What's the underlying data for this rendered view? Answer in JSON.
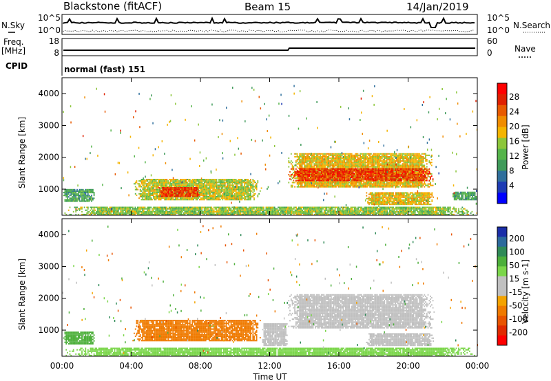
{
  "header": {
    "station": "Blackstone (fitACF)",
    "beam": "Beam 15",
    "date": "14/Jan/2019"
  },
  "top_panels": {
    "nsky_label": "N.Sky",
    "nsearch_label": "N.Search",
    "noise_ticks": [
      "10^5",
      "10^0"
    ],
    "freq_label": "Freq.",
    "freq_unit": "[MHz]",
    "freq_ticks": [
      "18",
      "8"
    ],
    "nave_label": "Nave",
    "nave_ticks": [
      "60",
      "0"
    ],
    "cpid_label": "CPID",
    "cpid_value": "normal (fast) 151"
  },
  "axes": {
    "ylabel": "Slant Range [km]",
    "yticks": [
      "4000",
      "3000",
      "2000",
      "1000"
    ],
    "xticks": [
      "00:00",
      "04:00",
      "08:00",
      "12:00",
      "16:00",
      "20:00",
      "00:00"
    ],
    "xlabel": "Time UT"
  },
  "colors": {
    "power": [
      "#0000ff",
      "#1e3cb4",
      "#2f6f9c",
      "#3f9a5a",
      "#55b44a",
      "#8cc63a",
      "#f4b400",
      "#f08c00",
      "#e85a00",
      "#e02000",
      "#ff0000"
    ],
    "velocity_pos": [
      "#1b2ea8",
      "#2c6a9c",
      "#2f8a57",
      "#4caf3a",
      "#7bd64a"
    ],
    "velocity_neg": [
      "#f4a300",
      "#ef7a00",
      "#e85400",
      "#e02a00",
      "#ff0000"
    ],
    "ground": "#c0c0c0"
  },
  "chart_data": [
    {
      "type": "heatmap",
      "title": "Power",
      "colorbar_label": "Power [dB]",
      "colorbar_ticks": [
        "28",
        "24",
        "20",
        "16",
        "12",
        "8",
        "4"
      ],
      "colorbar_range": [
        0,
        30
      ],
      "x_range_hours": [
        0,
        24
      ],
      "y_range_km": [
        180,
        4500
      ],
      "features": [
        {
          "t_start": 0.0,
          "t_end": 1.9,
          "r_start": 600,
          "r_end": 1000,
          "value": 10
        },
        {
          "t_start": 4.0,
          "t_end": 11.5,
          "r_start": 650,
          "r_end": 1300,
          "value": 16
        },
        {
          "t_start": 5.5,
          "t_end": 8.0,
          "r_start": 750,
          "r_end": 1050,
          "value": 26
        },
        {
          "t_start": 13.0,
          "t_end": 21.5,
          "r_start": 1050,
          "r_end": 2100,
          "value": 18
        },
        {
          "t_start": 13.0,
          "t_end": 21.5,
          "r_start": 1250,
          "r_end": 1650,
          "value": 26
        },
        {
          "t_start": 17.5,
          "t_end": 21.5,
          "r_start": 500,
          "r_end": 900,
          "value": 18
        },
        {
          "t_start": 22.5,
          "t_end": 24.0,
          "r_start": 650,
          "r_end": 900,
          "value": 10
        },
        {
          "t_start": 0.0,
          "t_end": 24.0,
          "r_start": 180,
          "r_end": 450,
          "value": 14
        }
      ]
    },
    {
      "type": "heatmap",
      "title": "Velocity",
      "colorbar_label": "Velocity [m s-1]",
      "colorbar_ticks": [
        "200",
        "100",
        "50",
        "15",
        "-15",
        "-50",
        "-100",
        "-200"
      ],
      "colorbar_range": [
        -250,
        250
      ],
      "x_range_hours": [
        0,
        24
      ],
      "y_range_km": [
        180,
        4500
      ],
      "features": [
        {
          "t_start": 0.0,
          "t_end": 1.9,
          "r_start": 550,
          "r_end": 950,
          "value": 60
        },
        {
          "t_start": 4.0,
          "t_end": 11.5,
          "r_start": 650,
          "r_end": 1300,
          "value": -70
        },
        {
          "t_start": 11.5,
          "t_end": 13.0,
          "r_start": 500,
          "r_end": 1200,
          "value": 0
        },
        {
          "t_start": 13.0,
          "t_end": 21.5,
          "r_start": 1050,
          "r_end": 2100,
          "value": 0
        },
        {
          "t_start": 17.5,
          "t_end": 21.5,
          "r_start": 500,
          "r_end": 900,
          "value": -10
        },
        {
          "t_start": 0.0,
          "t_end": 24.0,
          "r_start": 180,
          "r_end": 450,
          "value": 40
        }
      ]
    }
  ]
}
